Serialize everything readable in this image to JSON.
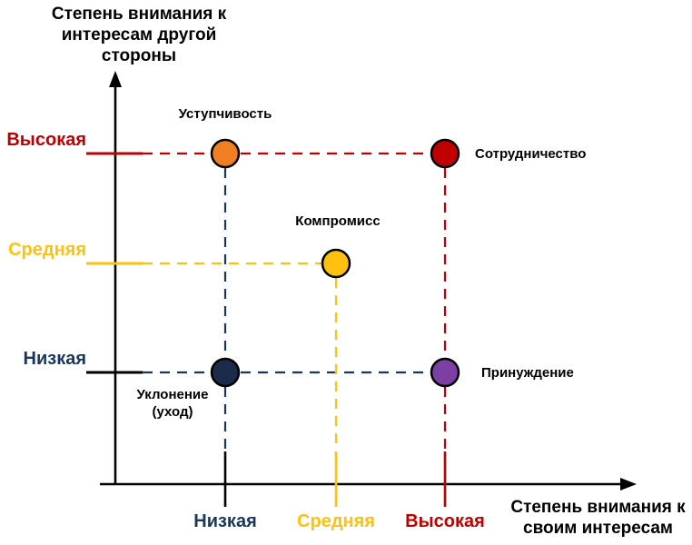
{
  "colors": {
    "red": "#C00000",
    "orange": "#F07F23",
    "yellow": "#FFC10E",
    "navy": "#17375E",
    "navy_dark": "#1A2B4B",
    "purple": "#7C3FA4",
    "black": "#000000"
  },
  "y_axis": {
    "title": "Степень внимания к\nинтересам другой\nстороны",
    "labels": [
      {
        "text": "Высокая",
        "level": "high",
        "color": "#C00000"
      },
      {
        "text": "Средняя",
        "level": "mid",
        "color": "#FFC10E"
      },
      {
        "text": "Низкая",
        "level": "low",
        "color": "#17375E"
      }
    ]
  },
  "x_axis": {
    "title": "Степень внимания к\nсвоим интересам",
    "labels": [
      {
        "text": "Низкая",
        "level": "low",
        "color": "#17375E"
      },
      {
        "text": "Средняя",
        "level": "mid",
        "color": "#FFC10E"
      },
      {
        "text": "Высокая",
        "level": "high",
        "color": "#C00000"
      }
    ]
  },
  "chart_data": {
    "type": "scatter",
    "x_categories": [
      "Низкая",
      "Средняя",
      "Высокая"
    ],
    "y_categories": [
      "Низкая",
      "Средняя",
      "Высокая"
    ],
    "xlabel": "Степень внимания к своим интересам",
    "ylabel": "Степень внимания к интересам другой стороны",
    "points": [
      {
        "label": "Уступчивость",
        "x": "low",
        "y": "high",
        "color": "#F07F23"
      },
      {
        "label": "Сотрудничество",
        "x": "high",
        "y": "high",
        "color": "#C00000"
      },
      {
        "label": "Компромисс",
        "x": "mid",
        "y": "mid",
        "color": "#FFC10E"
      },
      {
        "label": "Уклонение\n(уход)",
        "x": "low",
        "y": "low",
        "color": "#1A2B4B"
      },
      {
        "label": "Принуждение",
        "x": "high",
        "y": "low",
        "color": "#7C3FA4"
      }
    ]
  }
}
